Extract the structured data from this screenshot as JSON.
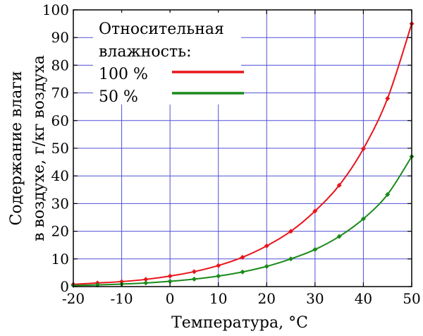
{
  "chart_data": {
    "type": "line",
    "xlabel": "Температура, °C",
    "ylabel_line1": "Содержание влаги",
    "ylabel_line2": "в воздухе, г/кг воздуха",
    "xlim": [
      -20,
      50
    ],
    "ylim": [
      0,
      100
    ],
    "grid": true,
    "legend_position": "top-left",
    "legend_title_line1": "Относительная",
    "legend_title_line2": "влажность:",
    "x_ticks": [
      "-20",
      "-10",
      "0",
      "10",
      "20",
      "30",
      "40",
      "50"
    ],
    "y_ticks": [
      "0",
      "10",
      "20",
      "30",
      "40",
      "50",
      "60",
      "70",
      "80",
      "90",
      "100"
    ],
    "x": [
      -20,
      -15,
      -10,
      -5,
      0,
      5,
      10,
      15,
      20,
      25,
      30,
      35,
      40,
      45,
      50
    ],
    "series": [
      {
        "name": "100 %",
        "color": "#e8141a",
        "values": [
          0.8,
          1.3,
          1.8,
          2.6,
          3.8,
          5.4,
          7.6,
          10.6,
          14.7,
          20.0,
          27.3,
          36.6,
          49.8,
          68.0,
          95.0
        ]
      },
      {
        "name": "50 %",
        "color": "#1a8a1a",
        "values": [
          0.4,
          0.6,
          0.9,
          1.3,
          1.9,
          2.7,
          3.8,
          5.3,
          7.3,
          10.0,
          13.4,
          18.1,
          24.5,
          33.3,
          47.0
        ]
      }
    ]
  }
}
